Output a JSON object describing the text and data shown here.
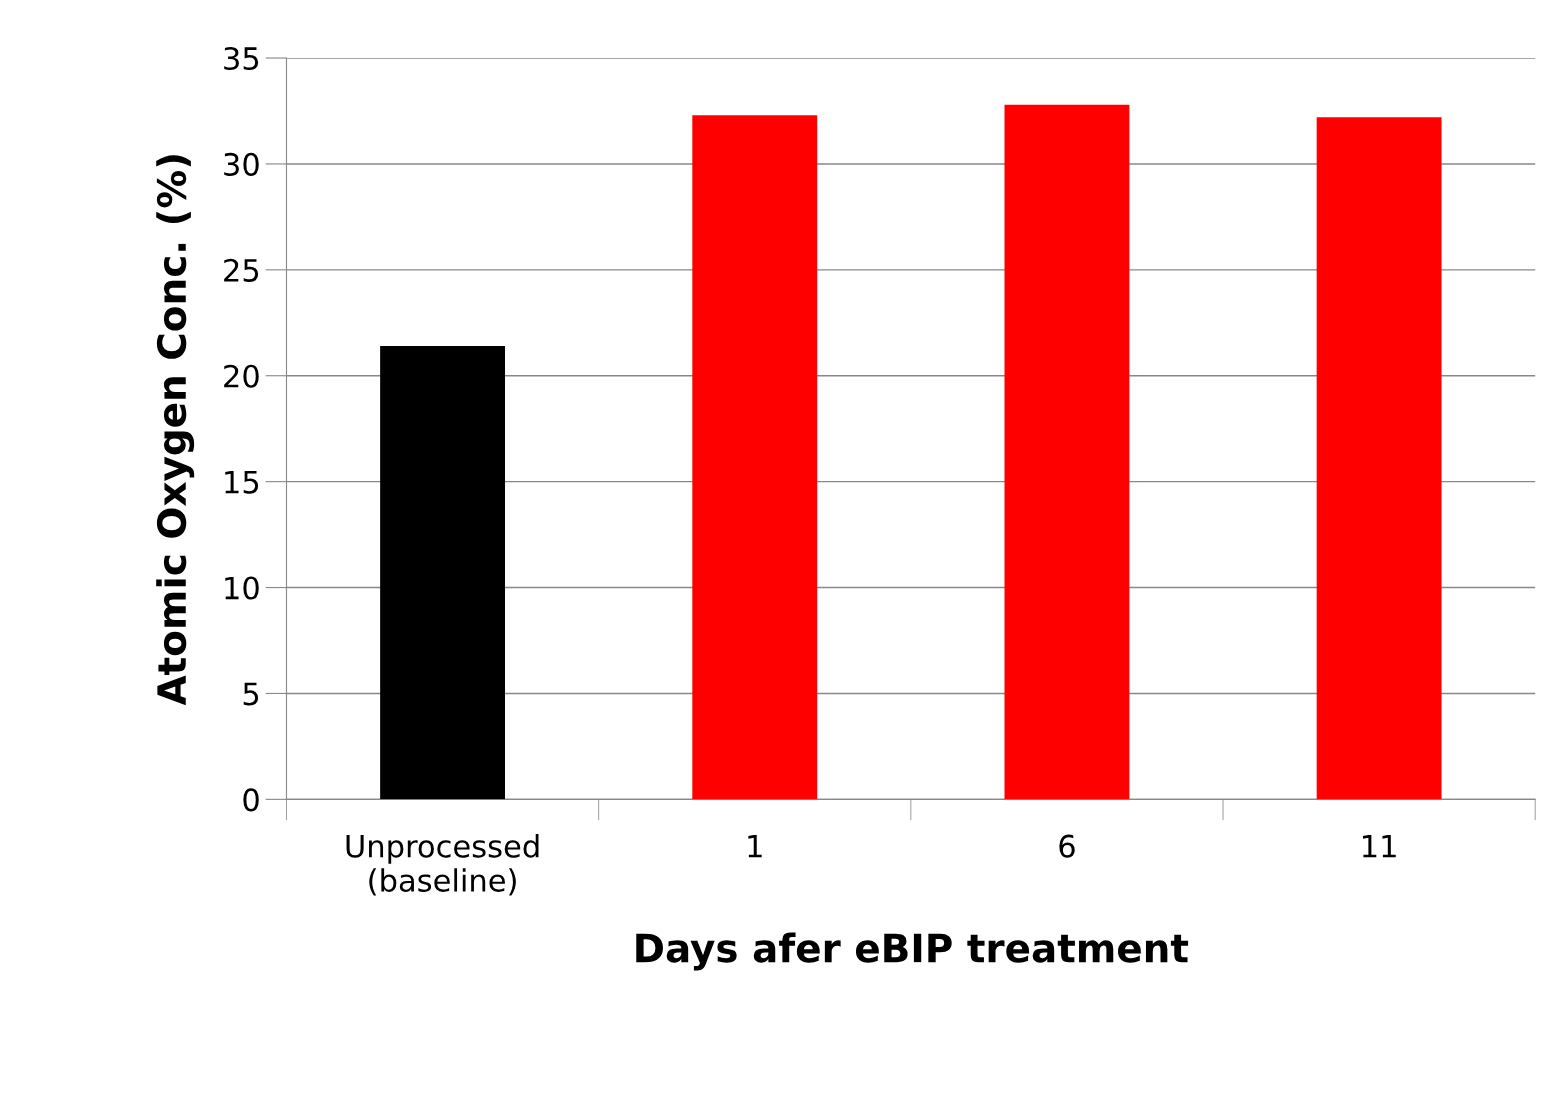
{
  "chart_data": {
    "type": "bar",
    "xlabel": "Days afer eBIP treatment",
    "ylabel": "Atomic Oxygen Conc. (%)",
    "categories": [
      "Unprocessed\n(baseline)",
      "1",
      "6",
      "11"
    ],
    "values": [
      21.4,
      32.3,
      32.8,
      32.2
    ],
    "colors": [
      "#000000",
      "#ff0000",
      "#ff0000",
      "#ff0000"
    ],
    "ylim": [
      0,
      35
    ],
    "yticks": [
      0,
      5,
      10,
      15,
      20,
      25,
      30,
      35
    ],
    "grid": "y",
    "legend": false
  }
}
